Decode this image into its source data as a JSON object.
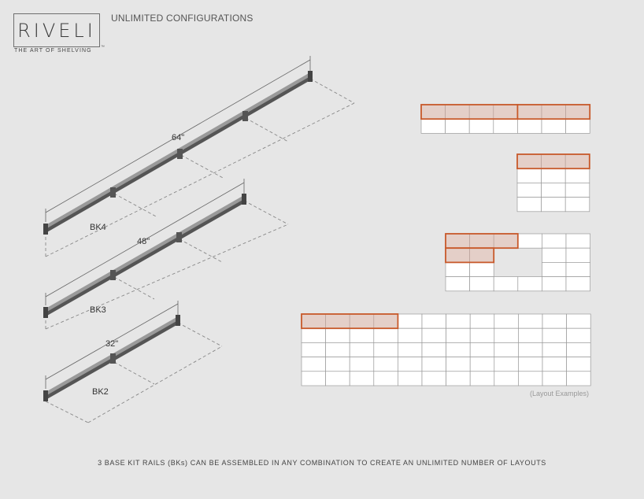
{
  "brand": {
    "name": "RIVELI",
    "tagline": "THE ART OF SHELVING",
    "trademark": "™"
  },
  "header": {
    "title": "UNLIMITED CONFIGURATIONS"
  },
  "rails": [
    {
      "kit": "BK4",
      "length": "64\""
    },
    {
      "kit": "BK3",
      "length": "48\""
    },
    {
      "kit": "BK2",
      "length": "32\""
    }
  ],
  "layouts": {
    "caption": "(Layout Examples)",
    "examples": [
      {
        "cols": 7,
        "rows": 2,
        "highlighted_groups": [
          [
            0,
            0,
            4
          ],
          [
            0,
            4,
            3
          ]
        ]
      },
      {
        "cols": 3,
        "rows": 4,
        "highlighted_groups": [
          [
            0,
            0,
            3
          ]
        ]
      },
      {
        "cols": 6,
        "rows": 4,
        "highlighted_groups": [
          [
            0,
            0,
            3
          ],
          [
            1,
            0,
            2
          ]
        ]
      },
      {
        "cols": 12,
        "rows": 5,
        "highlighted_groups": [
          [
            0,
            0,
            4
          ]
        ]
      }
    ]
  },
  "footer": {
    "text": "3 BASE KIT RAILS (BKs) CAN BE ASSEMBLED IN ANY COMBINATION TO CREATE AN UNLIMITED NUMBER OF LAYOUTS"
  },
  "colors": {
    "highlight_stroke": "#c8592a",
    "highlight_fill": "#e4cfc8",
    "cell_fill": "#ffffff",
    "cell_stroke": "#9a9a9a",
    "rail_dark": "#555555",
    "rail_light": "#9a9a9a"
  }
}
